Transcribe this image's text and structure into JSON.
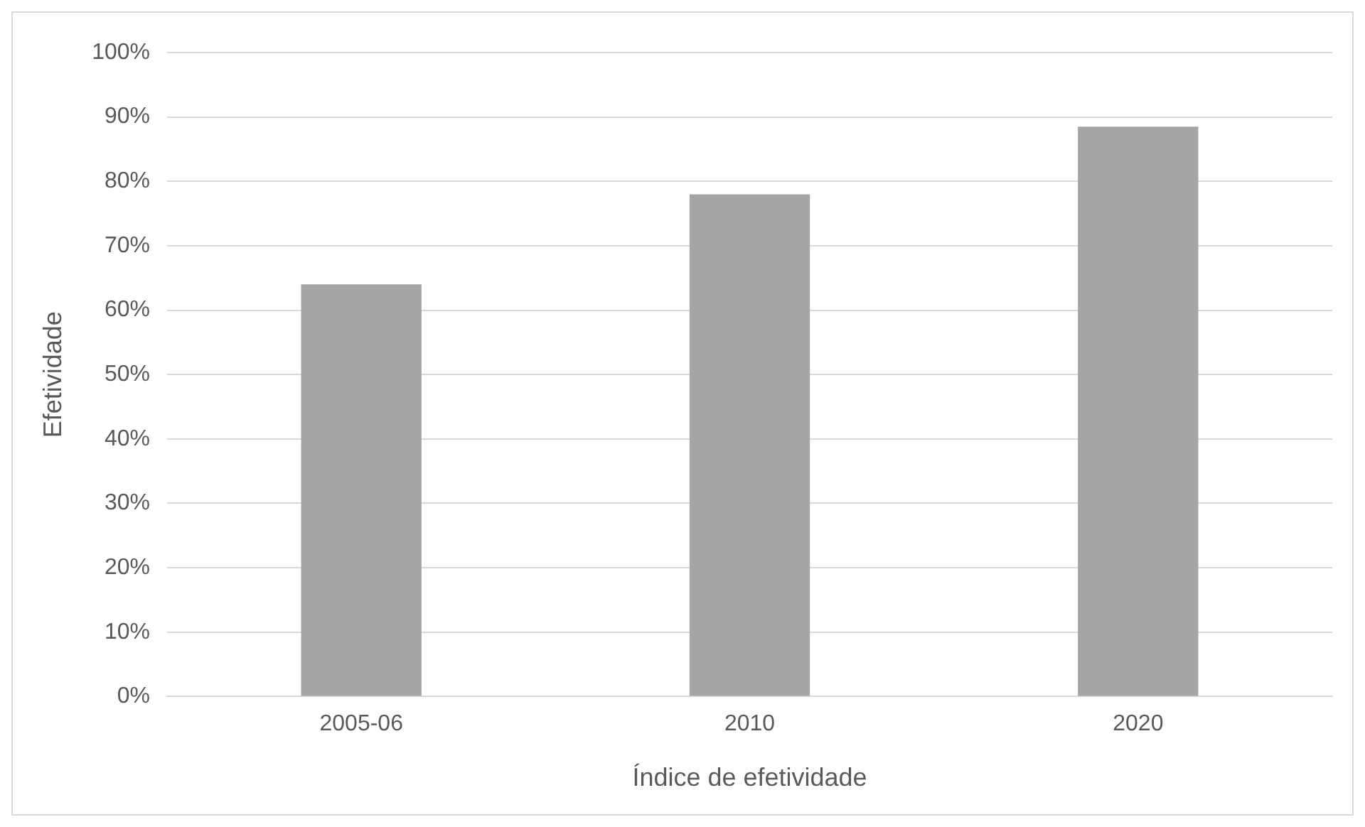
{
  "chart_data": {
    "type": "bar",
    "xlabel": "Índice de efetividade",
    "ylabel": "Efetividade",
    "categories": [
      "2005-06",
      "2010",
      "2020"
    ],
    "values": [
      64,
      78,
      88.5
    ],
    "color": "#a5a5a5",
    "ylim": [
      0,
      100
    ],
    "yticks": [
      {
        "value": 0,
        "label": "0%"
      },
      {
        "value": 10,
        "label": "10%"
      },
      {
        "value": 20,
        "label": "20%"
      },
      {
        "value": 30,
        "label": "30%"
      },
      {
        "value": 40,
        "label": "40%"
      },
      {
        "value": 50,
        "label": "50%"
      },
      {
        "value": 60,
        "label": "60%"
      },
      {
        "value": 70,
        "label": "70%"
      },
      {
        "value": 80,
        "label": "80%"
      },
      {
        "value": 90,
        "label": "90%"
      },
      {
        "value": 100,
        "label": "100%"
      }
    ],
    "grid": "y"
  }
}
